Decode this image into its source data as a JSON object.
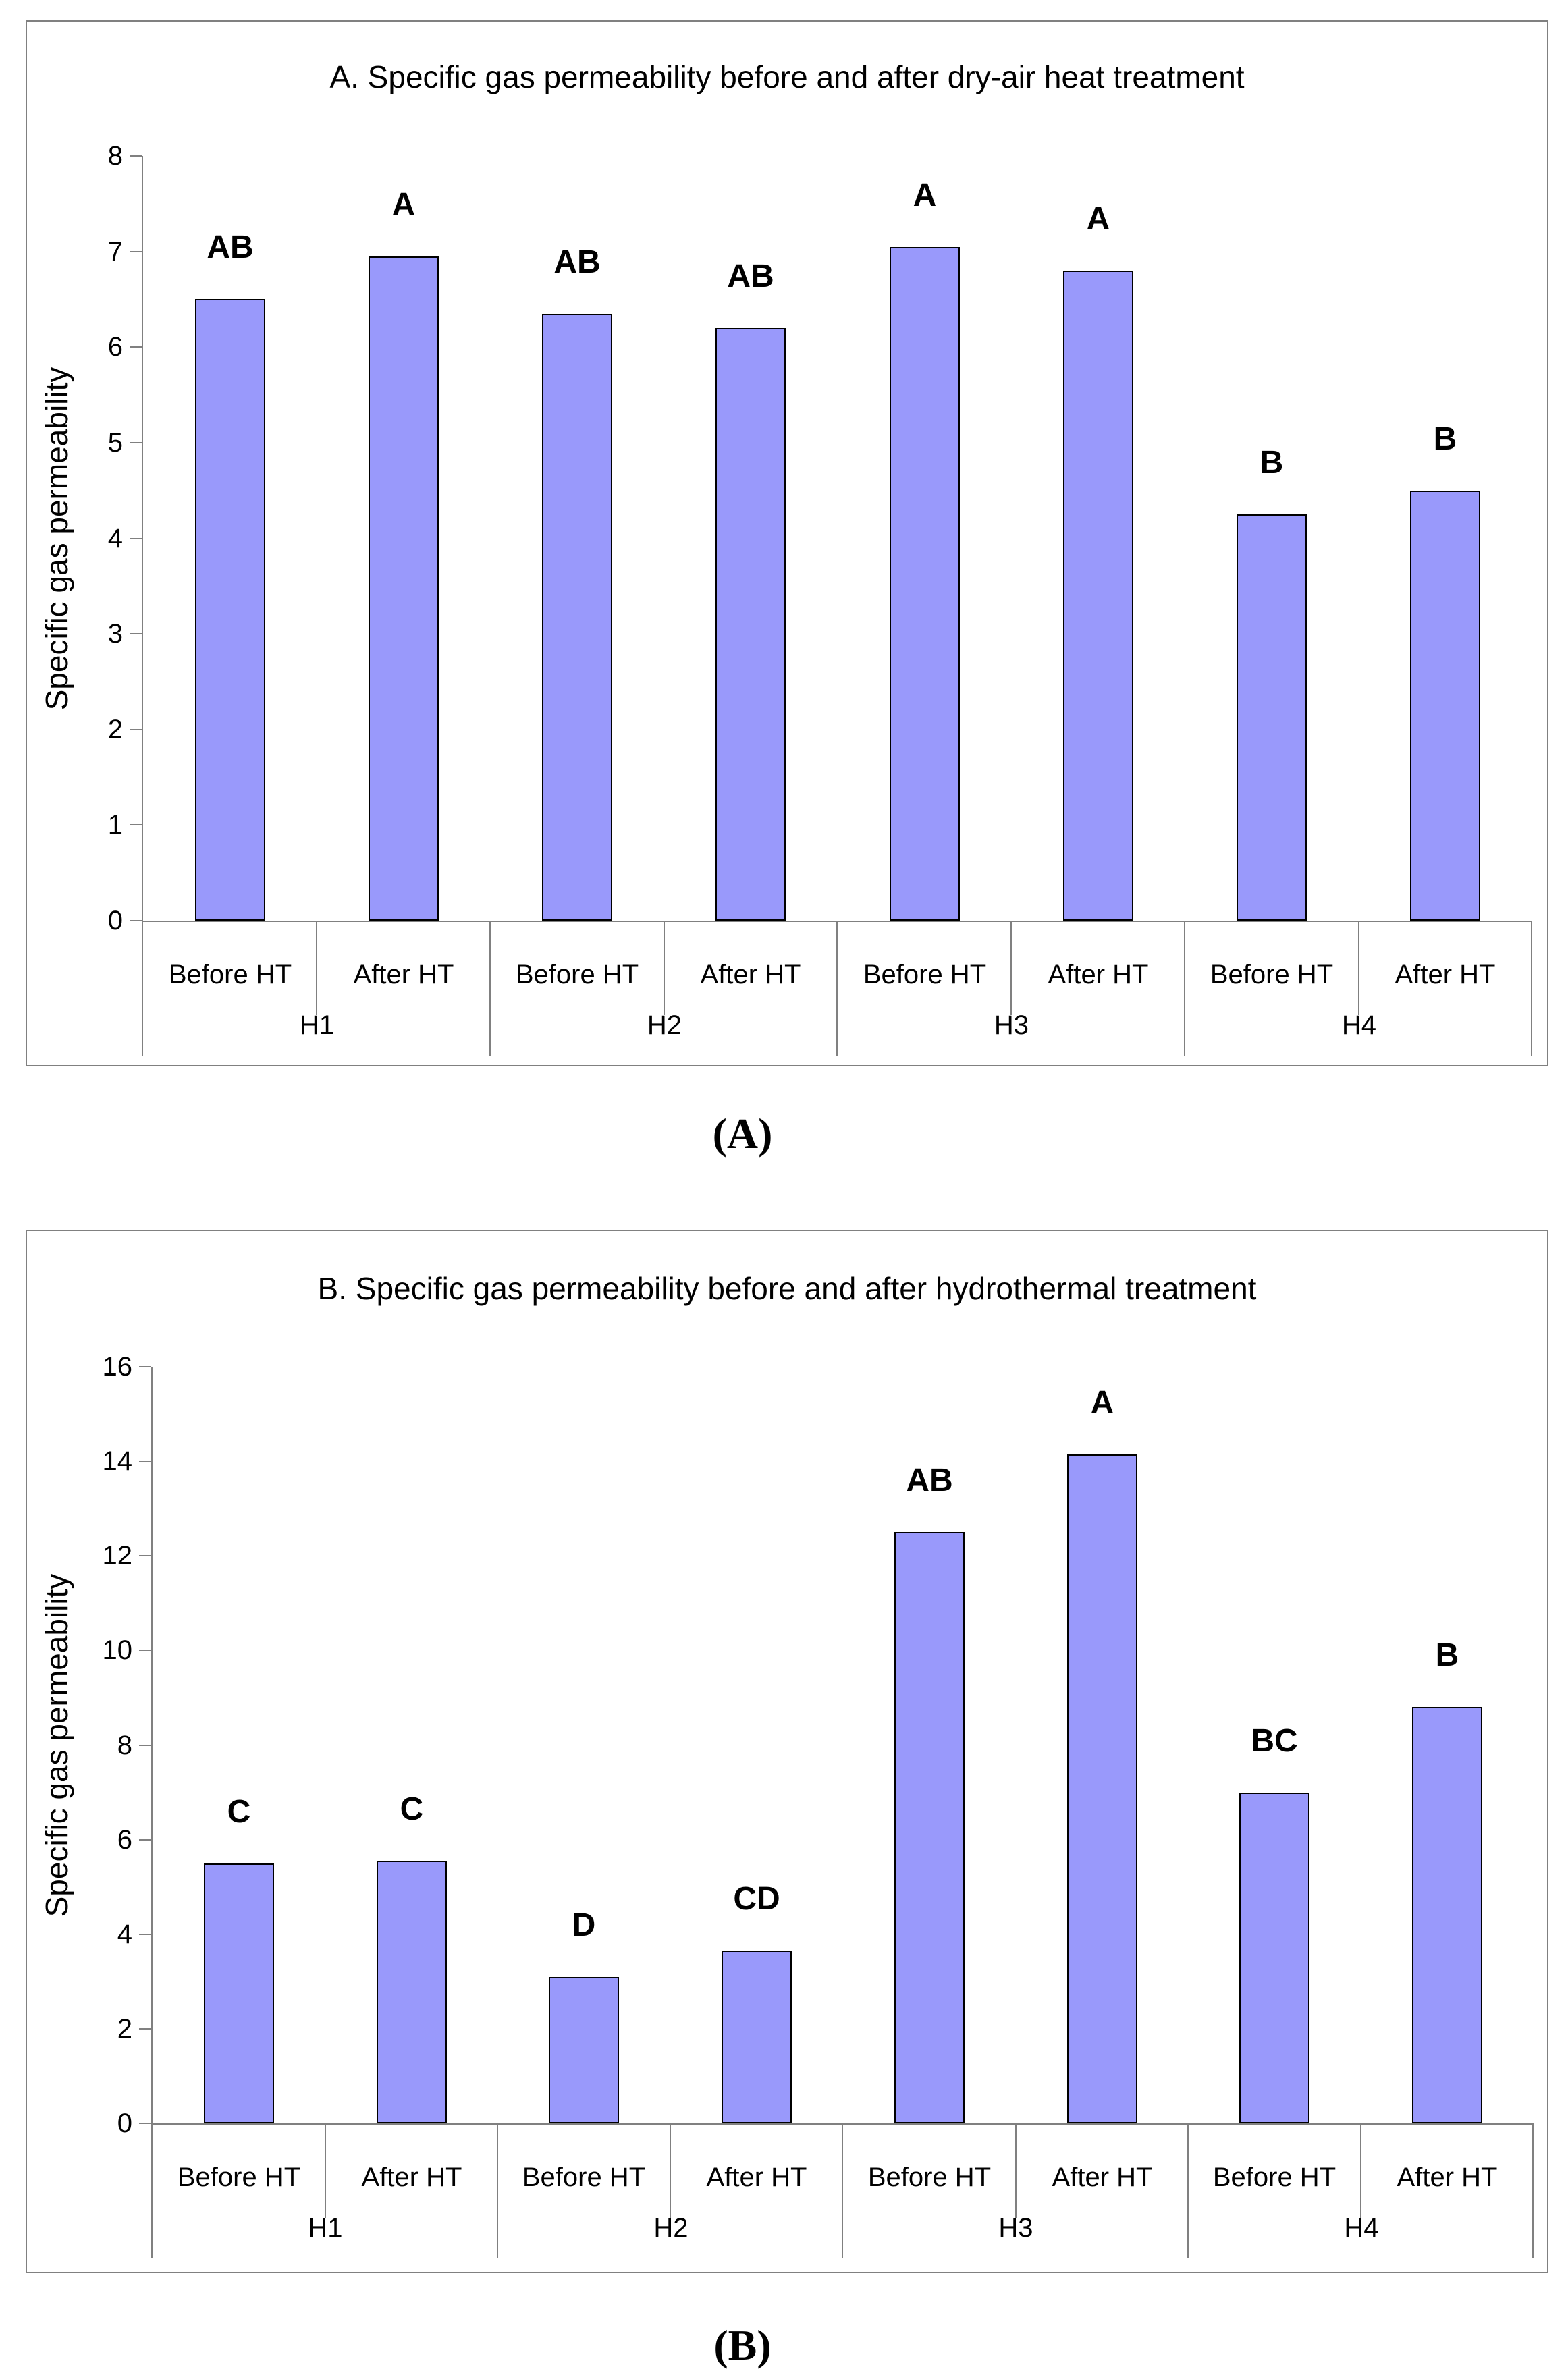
{
  "colors": {
    "bar_fill": "#9999FB",
    "bar_border": "#000000",
    "axis_line": "#808080",
    "panel_border": "#808080",
    "text": "#000000",
    "background": "#FFFFFF"
  },
  "chart_data": [
    {
      "id": "chart-a",
      "type": "bar",
      "title": "A. Specific gas permeability before and after dry-air heat treatment",
      "xlabel": "",
      "ylabel": "Specific gas permeability",
      "ylim": [
        0,
        8
      ],
      "yticks": [
        0,
        1,
        2,
        3,
        4,
        5,
        6,
        7,
        8
      ],
      "grid": false,
      "legend_position": "none",
      "caption": "(A)",
      "bar_labels": [
        "Before HT",
        "After HT"
      ],
      "groups": [
        {
          "label": "H1",
          "bars": [
            {
              "label": "Before HT",
              "value": 6.5,
              "letter": "AB"
            },
            {
              "label": "After HT",
              "value": 6.95,
              "letter": "A"
            }
          ]
        },
        {
          "label": "H2",
          "bars": [
            {
              "label": "Before HT",
              "value": 6.35,
              "letter": "AB"
            },
            {
              "label": "After HT",
              "value": 6.2,
              "letter": "AB"
            }
          ]
        },
        {
          "label": "H3",
          "bars": [
            {
              "label": "Before HT",
              "value": 7.05,
              "letter": "A"
            },
            {
              "label": "After HT",
              "value": 6.8,
              "letter": "A"
            }
          ]
        },
        {
          "label": "H4",
          "bars": [
            {
              "label": "Before HT",
              "value": 4.25,
              "letter": "B"
            },
            {
              "label": "After HT",
              "value": 4.5,
              "letter": "B"
            }
          ]
        }
      ]
    },
    {
      "id": "chart-b",
      "type": "bar",
      "title": "B. Specific gas permeability before and after hydrothermal treatment",
      "xlabel": "",
      "ylabel": "Specific gas permeability",
      "ylim": [
        0,
        16
      ],
      "yticks": [
        0,
        2,
        4,
        6,
        8,
        10,
        12,
        14,
        16
      ],
      "grid": false,
      "legend_position": "none",
      "caption": "(B)",
      "bar_labels": [
        "Before HT",
        "After HT"
      ],
      "groups": [
        {
          "label": "H1",
          "bars": [
            {
              "label": "Before HT",
              "value": 5.5,
              "letter": "C"
            },
            {
              "label": "After HT",
              "value": 5.55,
              "letter": "C"
            }
          ]
        },
        {
          "label": "H2",
          "bars": [
            {
              "label": "Before HT",
              "value": 3.1,
              "letter": "D"
            },
            {
              "label": "After HT",
              "value": 3.65,
              "letter": "CD"
            }
          ]
        },
        {
          "label": "H3",
          "bars": [
            {
              "label": "Before HT",
              "value": 12.5,
              "letter": "AB"
            },
            {
              "label": "After HT",
              "value": 14.15,
              "letter": "A"
            }
          ]
        },
        {
          "label": "H4",
          "bars": [
            {
              "label": "Before HT",
              "value": 7.0,
              "letter": "BC"
            },
            {
              "label": "After HT",
              "value": 8.8,
              "letter": "B"
            }
          ]
        }
      ]
    }
  ]
}
